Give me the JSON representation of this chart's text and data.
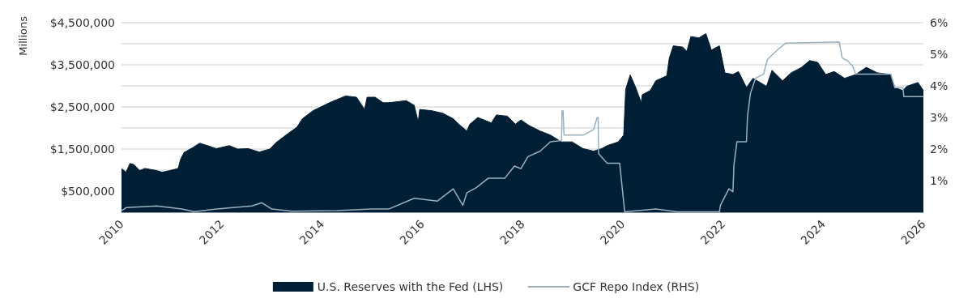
{
  "chart_data": {
    "type": "area",
    "ylabel": "Millions",
    "xlim": [
      2010,
      2026
    ],
    "xticks": [
      2010,
      2012,
      2014,
      2016,
      2018,
      2020,
      2022,
      2024,
      2026
    ],
    "ylim": [
      0,
      4500000
    ],
    "yticks": [
      {
        "value": 500000,
        "label": "$500,000"
      },
      {
        "value": 1000000,
        "label": null
      },
      {
        "value": 1500000,
        "label": "$1,500,000"
      },
      {
        "value": 2000000,
        "label": null
      },
      {
        "value": 2500000,
        "label": "$2,500,000"
      },
      {
        "value": 3000000,
        "label": null
      },
      {
        "value": 3500000,
        "label": "$3,500,000"
      },
      {
        "value": 4000000,
        "label": null
      },
      {
        "value": 4500000,
        "label": "$4,500,000"
      }
    ],
    "y2lim": [
      0,
      6
    ],
    "y2ticks": [
      {
        "value": 1,
        "label": "1%"
      },
      {
        "value": 2,
        "label": "2%"
      },
      {
        "value": 3,
        "label": "3%"
      },
      {
        "value": 4,
        "label": "4%"
      },
      {
        "value": 5,
        "label": "5%"
      },
      {
        "value": 6,
        "label": "6%"
      }
    ],
    "grid": "y",
    "legend": "bottom",
    "series": [
      {
        "name": "U.S. Reserves with the Fed (LHS)",
        "color": "#001f35",
        "x": [
          2010.0,
          2010.09,
          2010.17,
          2010.25,
          2010.36,
          2010.47,
          2010.7,
          2010.81,
          2010.97,
          2011.13,
          2011.18,
          2011.25,
          2011.43,
          2011.56,
          2011.72,
          2011.89,
          2012.15,
          2012.32,
          2012.53,
          2012.75,
          2012.96,
          2013.07,
          2013.28,
          2013.5,
          2013.61,
          2013.82,
          2014.15,
          2014.47,
          2014.69,
          2014.85,
          2014.9,
          2015.06,
          2015.22,
          2015.33,
          2015.55,
          2015.68,
          2015.84,
          2015.92,
          2015.95,
          2016.19,
          2016.41,
          2016.62,
          2016.73,
          2016.89,
          2016.95,
          2017.11,
          2017.38,
          2017.48,
          2017.7,
          2017.86,
          2017.97,
          2018.13,
          2018.35,
          2018.56,
          2018.78,
          2018.99,
          2019.21,
          2019.42,
          2019.58,
          2019.69,
          2019.91,
          2020.02,
          2020.06,
          2020.15,
          2020.26,
          2020.37,
          2020.39,
          2020.55,
          2020.66,
          2020.88,
          2020.93,
          2021.01,
          2021.2,
          2021.28,
          2021.36,
          2021.52,
          2021.66,
          2021.77,
          2021.93,
          2022.04,
          2022.2,
          2022.31,
          2022.47,
          2022.6,
          2022.87,
          2022.98,
          2023.19,
          2023.36,
          2023.57,
          2023.73,
          2023.89,
          2024.05,
          2024.22,
          2024.43,
          2024.65,
          2024.86,
          2025.08,
          2025.35,
          2025.43,
          2025.59,
          2025.67,
          2025.89,
          2026.0
        ],
        "values": [
          1040000,
          950000,
          1160000,
          1130000,
          990000,
          1040000,
          990000,
          950000,
          990000,
          1040000,
          1260000,
          1420000,
          1540000,
          1640000,
          1580000,
          1510000,
          1580000,
          1500000,
          1510000,
          1430000,
          1500000,
          1640000,
          1830000,
          2020000,
          2220000,
          2410000,
          2600000,
          2760000,
          2730000,
          2440000,
          2730000,
          2730000,
          2600000,
          2600000,
          2630000,
          2650000,
          2540000,
          2150000,
          2440000,
          2410000,
          2350000,
          2220000,
          2090000,
          1930000,
          2090000,
          2250000,
          2120000,
          2310000,
          2280000,
          2090000,
          2190000,
          2060000,
          1930000,
          1830000,
          1670000,
          1670000,
          1510000,
          1450000,
          1510000,
          1580000,
          1670000,
          1830000,
          2920000,
          3260000,
          2960000,
          2600000,
          2790000,
          2890000,
          3120000,
          3240000,
          3660000,
          3950000,
          3920000,
          3820000,
          4170000,
          4140000,
          4240000,
          3850000,
          3950000,
          3310000,
          3270000,
          3340000,
          2960000,
          3180000,
          2990000,
          3370000,
          3120000,
          3310000,
          3440000,
          3600000,
          3560000,
          3270000,
          3340000,
          3180000,
          3270000,
          3440000,
          3310000,
          3270000,
          2960000,
          2890000,
          2990000,
          3080000,
          2890000
        ]
      },
      {
        "name": "GCF Repo Index (RHS)",
        "type": "line",
        "axis": "y2",
        "color": "#9ab0be",
        "x": [
          2010.0,
          2010.1,
          2010.7,
          2011.2,
          2011.45,
          2011.9,
          2012.6,
          2012.8,
          2013.0,
          2013.4,
          2014.3,
          2015.0,
          2015.33,
          2015.84,
          2016.3,
          2016.62,
          2016.81,
          2016.89,
          2017.08,
          2017.32,
          2017.65,
          2017.84,
          2017.97,
          2018.11,
          2018.35,
          2018.56,
          2018.78,
          2018.79,
          2018.81,
          2018.83,
          2019.21,
          2019.42,
          2019.49,
          2019.51,
          2019.52,
          2019.69,
          2019.94,
          2020.04,
          2020.66,
          2020.82,
          2021.09,
          2021.93,
          2021.95,
          2022.12,
          2022.2,
          2022.22,
          2022.28,
          2022.47,
          2022.49,
          2022.55,
          2022.65,
          2022.81,
          2022.89,
          2023.09,
          2023.25,
          2024.32,
          2024.38,
          2024.49,
          2024.59,
          2024.65,
          2025.35,
          2025.43,
          2025.59,
          2025.61,
          2026.0
        ],
        "values": [
          0.05,
          0.15,
          0.2,
          0.1,
          0.02,
          0.1,
          0.2,
          0.3,
          0.1,
          0.03,
          0.05,
          0.1,
          0.1,
          0.44,
          0.35,
          0.74,
          0.22,
          0.61,
          0.78,
          1.08,
          1.08,
          1.46,
          1.38,
          1.76,
          1.93,
          2.23,
          2.27,
          3.21,
          3.21,
          2.44,
          2.44,
          2.62,
          3.0,
          3.0,
          1.85,
          1.55,
          1.55,
          0.01,
          0.1,
          0.07,
          0.01,
          0.01,
          0.22,
          0.74,
          0.65,
          1.5,
          2.23,
          2.23,
          3.03,
          3.77,
          4.24,
          4.37,
          4.84,
          5.14,
          5.35,
          5.39,
          4.88,
          4.79,
          4.62,
          4.37,
          4.37,
          3.94,
          3.94,
          3.66,
          3.66
        ]
      }
    ]
  }
}
